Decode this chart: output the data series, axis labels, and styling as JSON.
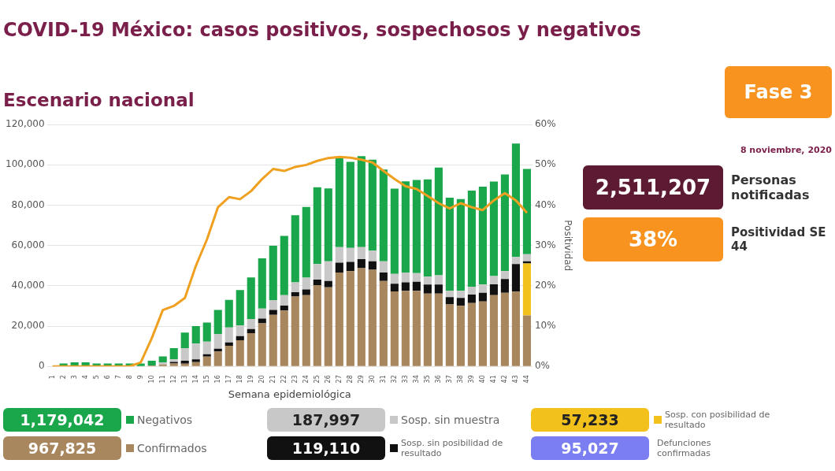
{
  "chart_data": {
    "type": "bar",
    "title": "COVID-19 México: casos positivos, sospechosos y negativos",
    "subtitle": "Escenario nacional",
    "xlabel": "Semana epidemiológica",
    "y2label": "Positividad",
    "categories": [
      "1",
      "2",
      "3",
      "4",
      "5",
      "6",
      "7",
      "8",
      "9",
      "10",
      "11",
      "12",
      "13",
      "14",
      "15",
      "16",
      "17",
      "18",
      "19",
      "20",
      "21",
      "22",
      "23",
      "24",
      "25",
      "26",
      "27",
      "28",
      "29",
      "30",
      "31",
      "32",
      "33",
      "34",
      "35",
      "36",
      "37",
      "38",
      "39",
      "40",
      "41",
      "42",
      "43",
      "44"
    ],
    "stacked": true,
    "grid": "y",
    "legend": "bottom",
    "ylim": [
      0,
      120000
    ],
    "yticks": [
      0,
      {
        "value": 20000,
        "label": "20,000"
      },
      {
        "value": 40000,
        "label": "40,000"
      },
      {
        "value": 60000,
        "label": "60,000"
      },
      {
        "value": 80000,
        "label": "80,000"
      },
      {
        "value": 100000,
        "label": "100,000"
      },
      {
        "value": 120000,
        "label": "120,000"
      }
    ],
    "y2lim": [
      0,
      60
    ],
    "y2ticks": [
      {
        "value": 0,
        "label": "0%"
      },
      {
        "value": 10,
        "label": "10%"
      },
      {
        "value": 20,
        "label": "20%"
      },
      {
        "value": 30,
        "label": "30%"
      },
      {
        "value": 40,
        "label": "40%"
      },
      {
        "value": 50,
        "label": "50%"
      },
      {
        "value": 60,
        "label": "60%"
      }
    ],
    "series": [
      {
        "name": "Confirmados",
        "color": "#a8865e",
        "values": [
          0,
          0,
          0,
          0,
          0,
          0,
          0,
          0,
          0,
          500,
          1000,
          1500,
          1400,
          2100,
          4900,
          7400,
          10200,
          13000,
          16500,
          21400,
          25600,
          27700,
          34700,
          35400,
          40300,
          39300,
          46600,
          47300,
          48700,
          48000,
          42400,
          37200,
          37500,
          37500,
          36100,
          36100,
          30800,
          30100,
          31500,
          32200,
          35400,
          36500,
          37100,
          25300
        ]
      },
      {
        "name": "Sosp. con posibilidad de resultado",
        "color": "#f2c11b",
        "values": [
          0,
          0,
          0,
          0,
          0,
          0,
          0,
          0,
          0,
          0,
          0,
          0,
          0,
          0,
          0,
          0,
          0,
          0,
          0,
          0,
          0,
          0,
          0,
          0,
          0,
          0,
          0,
          0,
          0,
          0,
          0,
          0,
          0,
          0,
          0,
          0,
          0,
          0,
          0,
          0,
          0,
          0,
          0,
          25800
        ]
      },
      {
        "name": "Sosp. sin posibilidad de resultado",
        "color": "#111111",
        "values": [
          0,
          0,
          0,
          0,
          0,
          0,
          0,
          0,
          0,
          0,
          0,
          700,
          1400,
          1400,
          1100,
          1400,
          1700,
          2000,
          2100,
          2300,
          2400,
          2500,
          2100,
          2800,
          2800,
          3100,
          4900,
          4600,
          4500,
          4200,
          4200,
          3800,
          4200,
          4500,
          4500,
          4500,
          3600,
          3900,
          4200,
          4300,
          5300,
          6900,
          13700,
          1100
        ]
      },
      {
        "name": "Sosp. sin muestra",
        "color": "#c8c8c8",
        "values": [
          0,
          0,
          0,
          0,
          0,
          0,
          0,
          0,
          0,
          null,
          1000,
          1300,
          6300,
          7800,
          6300,
          7300,
          7400,
          5300,
          4900,
          5000,
          4900,
          5200,
          4900,
          5900,
          7700,
          9800,
          7700,
          6900,
          6000,
          5200,
          5600,
          4900,
          4900,
          4300,
          3900,
          4600,
          3100,
          3500,
          3900,
          4100,
          4100,
          3900,
          3500,
          3500
        ]
      },
      {
        "name": "Negativos",
        "color": "#1aa64a",
        "values": [
          null,
          1500,
          2000,
          2000,
          1500,
          1500,
          1500,
          1500,
          1500,
          2300,
          3000,
          5600,
          7700,
          8700,
          9500,
          11900,
          13700,
          17600,
          20700,
          24900,
          27000,
          29400,
          33300,
          35000,
          38100,
          36100,
          44100,
          42700,
          45100,
          45200,
          45500,
          42300,
          45200,
          46200,
          48300,
          53500,
          46200,
          45500,
          47600,
          48600,
          46900,
          48000,
          56300,
          42300
        ]
      },
      {
        "type": "line",
        "axis": "y2",
        "color": "#f0a020",
        "values": [
          0,
          0,
          0,
          0,
          0,
          0,
          0,
          0,
          1,
          7,
          14,
          15,
          17,
          25,
          31.5,
          39.5,
          42,
          41.5,
          43.5,
          46.5,
          49,
          48.5,
          49.5,
          50,
          51,
          51.7,
          52,
          51.8,
          51.3,
          50.6,
          48.5,
          46.5,
          44.7,
          44,
          42.3,
          40.5,
          39.2,
          40.5,
          39.5,
          38.8,
          41.2,
          43,
          41.2,
          38.1
        ]
      }
    ],
    "annotations": [
      "967,825",
      "57,233",
      "119,110",
      "187,997",
      "1,179,042",
      "95,027",
      "Defunciones confirmadas",
      "Fase 3",
      "8 noviembre, 2020",
      "2,511,207",
      "Personas notificadas",
      "38%",
      "Positividad SE 44"
    ]
  }
}
